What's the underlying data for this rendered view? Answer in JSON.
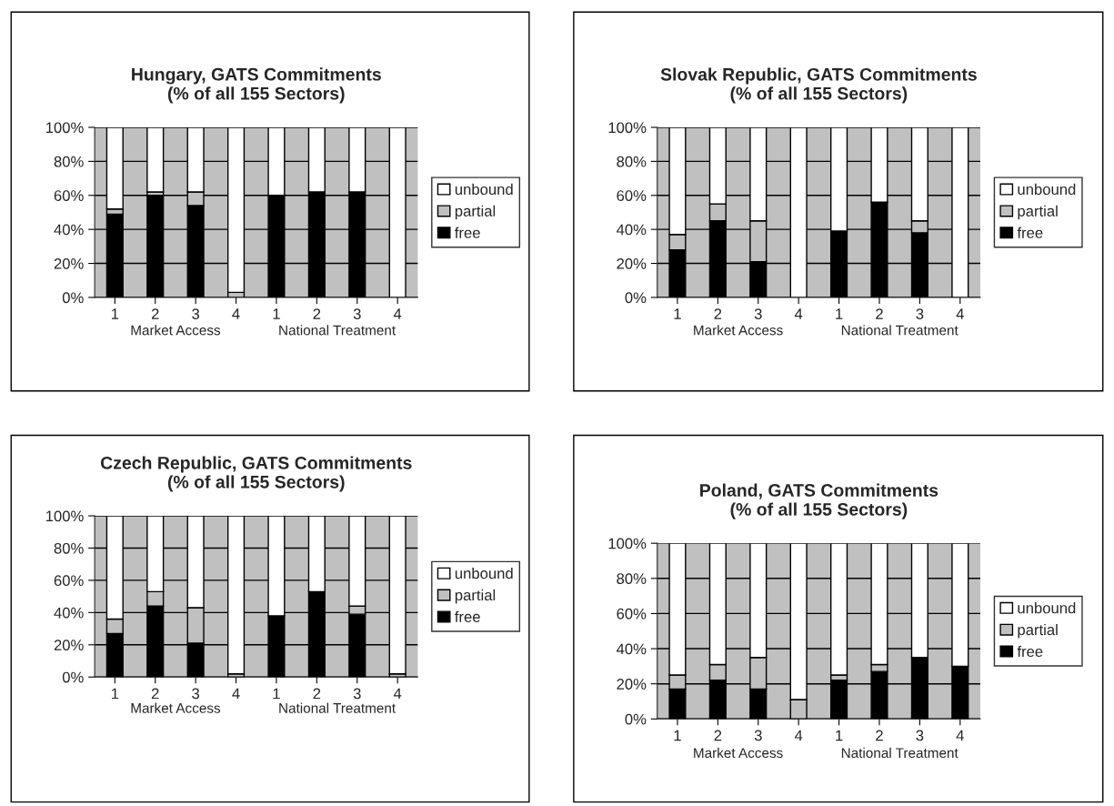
{
  "chart_data": [
    {
      "type": "bar",
      "title": "Hungary, GATS Commitments\n(% of all 155 Sectors)",
      "categories": [
        "1",
        "2",
        "3",
        "4",
        "1",
        "2",
        "3",
        "4"
      ],
      "stacked": true,
      "ylim": [
        0,
        100
      ],
      "yticks": [
        {
          "value": 0,
          "label": "0%"
        },
        {
          "value": 20,
          "label": "20%"
        },
        {
          "value": 40,
          "label": "40%"
        },
        {
          "value": 60,
          "label": "60%"
        },
        {
          "value": 80,
          "label": "80%"
        },
        {
          "value": 100,
          "label": "100%"
        }
      ],
      "grid": "y",
      "legend": "right",
      "annotations": [
        "Market Access",
        "National Treatment"
      ],
      "series": [
        {
          "name": "free",
          "color": "#000000",
          "values": [
            49,
            60,
            54,
            0,
            60,
            62,
            62,
            0
          ]
        },
        {
          "name": "partial",
          "color": "#c0c0c0",
          "values": [
            3,
            2,
            8,
            3,
            0,
            0,
            0,
            0
          ]
        },
        {
          "name": "unbound",
          "color": "#ffffff",
          "values": [
            48,
            38,
            38,
            97,
            40,
            38,
            38,
            100
          ]
        }
      ]
    },
    {
      "type": "bar",
      "title": "Slovak Republic, GATS Commitments\n(% of all 155 Sectors)",
      "categories": [
        "1",
        "2",
        "3",
        "4",
        "1",
        "2",
        "3",
        "4"
      ],
      "stacked": true,
      "ylim": [
        0,
        100
      ],
      "yticks": [
        {
          "value": 0,
          "label": "0%"
        },
        {
          "value": 20,
          "label": "20%"
        },
        {
          "value": 40,
          "label": "40%"
        },
        {
          "value": 60,
          "label": "60%"
        },
        {
          "value": 80,
          "label": "80%"
        },
        {
          "value": 100,
          "label": "100%"
        }
      ],
      "grid": "y",
      "legend": "right",
      "annotations": [
        "Market Access",
        "National Treatment"
      ],
      "series": [
        {
          "name": "free",
          "color": "#000000",
          "values": [
            28,
            45,
            21,
            0,
            39,
            56,
            38,
            0
          ]
        },
        {
          "name": "partial",
          "color": "#c0c0c0",
          "values": [
            9,
            10,
            24,
            0,
            0,
            0,
            7,
            0
          ]
        },
        {
          "name": "unbound",
          "color": "#ffffff",
          "values": [
            63,
            45,
            55,
            100,
            61,
            44,
            55,
            100
          ]
        }
      ]
    },
    {
      "type": "bar",
      "title": "Czech Republic, GATS Commitments\n(% of all 155 Sectors)",
      "categories": [
        "1",
        "2",
        "3",
        "4",
        "1",
        "2",
        "3",
        "4"
      ],
      "stacked": true,
      "ylim": [
        0,
        100
      ],
      "yticks": [
        {
          "value": 0,
          "label": "0%"
        },
        {
          "value": 20,
          "label": "20%"
        },
        {
          "value": 40,
          "label": "40%"
        },
        {
          "value": 60,
          "label": "60%"
        },
        {
          "value": 80,
          "label": "80%"
        },
        {
          "value": 100,
          "label": "100%"
        }
      ],
      "grid": "y",
      "legend": "right",
      "annotations": [
        "Market Access",
        "National Treatment"
      ],
      "series": [
        {
          "name": "free",
          "color": "#000000",
          "values": [
            27,
            44,
            21,
            0,
            38,
            53,
            39,
            0
          ]
        },
        {
          "name": "partial",
          "color": "#c0c0c0",
          "values": [
            9,
            9,
            22,
            2,
            0,
            0,
            5,
            2
          ]
        },
        {
          "name": "unbound",
          "color": "#ffffff",
          "values": [
            64,
            47,
            57,
            98,
            62,
            47,
            56,
            98
          ]
        }
      ]
    },
    {
      "type": "bar",
      "title": "Poland, GATS Commitments\n(% of all 155 Sectors)",
      "categories": [
        "1",
        "2",
        "3",
        "4",
        "1",
        "2",
        "3",
        "4"
      ],
      "stacked": true,
      "ylim": [
        0,
        100
      ],
      "yticks": [
        {
          "value": 0,
          "label": "0%"
        },
        {
          "value": 20,
          "label": "20%"
        },
        {
          "value": 40,
          "label": "40%"
        },
        {
          "value": 60,
          "label": "60%"
        },
        {
          "value": 80,
          "label": "80%"
        },
        {
          "value": 100,
          "label": "100%"
        }
      ],
      "grid": "y",
      "legend": "right",
      "annotations": [
        "Market Access",
        "National Treatment"
      ],
      "series": [
        {
          "name": "free",
          "color": "#000000",
          "values": [
            17,
            22,
            17,
            0,
            22,
            27,
            35,
            30
          ]
        },
        {
          "name": "partial",
          "color": "#c0c0c0",
          "values": [
            8,
            9,
            18,
            11,
            3,
            4,
            0,
            0
          ]
        },
        {
          "name": "unbound",
          "color": "#ffffff",
          "values": [
            75,
            69,
            65,
            89,
            75,
            69,
            65,
            70
          ]
        }
      ]
    }
  ]
}
